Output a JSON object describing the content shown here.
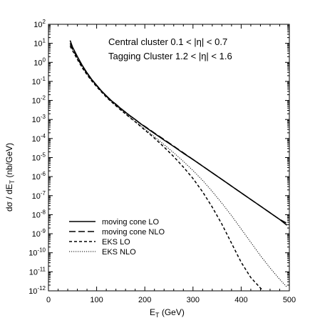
{
  "chart_data": {
    "type": "line",
    "title": "",
    "xlabel_main": "E",
    "xlabel_sub": "T",
    "xlabel_unit": " (GeV)",
    "ylabel_main": "dσ / dE",
    "ylabel_sub": "T",
    "ylabel_unit": " (nb/GeV)",
    "xlim": [
      0,
      500
    ],
    "ylim_log10": [
      -12,
      2
    ],
    "yscale": "log",
    "x_ticks": [
      "0",
      "100",
      "200",
      "300",
      "400",
      "500"
    ],
    "y_tick_exponents": [
      "2",
      "1",
      "0",
      "-1",
      "-2",
      "-3",
      "-4",
      "-5",
      "-6",
      "-7",
      "-8",
      "-9",
      "-10",
      "-11",
      "-12"
    ],
    "y_tick_base": "10",
    "annotations": [
      {
        "text": "Central cluster 0.1 < |η| < 0.7"
      },
      {
        "text": "Tagging Cluster 1.2 < |η| < 1.6"
      }
    ],
    "legend_position": "bottom-left",
    "series": [
      {
        "name": "moving cone LO",
        "style": "solid",
        "x": [
          45,
          50,
          60,
          70,
          80,
          90,
          100,
          110,
          120,
          130,
          140,
          150,
          160,
          170,
          180,
          190,
          200,
          220,
          240,
          260,
          280,
          300,
          320,
          340,
          360,
          380,
          400,
          420,
          440,
          460,
          480,
          495
        ],
        "log10_y": [
          1.15,
          0.8,
          0.3,
          -0.15,
          -0.55,
          -0.9,
          -1.2,
          -1.5,
          -1.75,
          -2.0,
          -2.2,
          -2.42,
          -2.62,
          -2.82,
          -3.0,
          -3.2,
          -3.38,
          -3.73,
          -4.08,
          -4.42,
          -4.77,
          -5.1,
          -5.45,
          -5.8,
          -6.15,
          -6.5,
          -6.85,
          -7.2,
          -7.55,
          -7.9,
          -8.25,
          -8.55
        ]
      },
      {
        "name": "moving cone NLO",
        "style": "dashed",
        "x": [
          45,
          50,
          60,
          70,
          80,
          90,
          100,
          110,
          120,
          130,
          140,
          150,
          160,
          170,
          180,
          190,
          200,
          220,
          240,
          260,
          280,
          300,
          320,
          340,
          360,
          380,
          400,
          420,
          440,
          460,
          480,
          495
        ],
        "log10_y": [
          1.0,
          0.72,
          0.24,
          -0.2,
          -0.58,
          -0.92,
          -1.22,
          -1.5,
          -1.76,
          -2.0,
          -2.2,
          -2.42,
          -2.62,
          -2.82,
          -3.0,
          -3.19,
          -3.36,
          -3.71,
          -4.05,
          -4.4,
          -4.75,
          -5.1,
          -5.45,
          -5.8,
          -6.15,
          -6.5,
          -6.85,
          -7.2,
          -7.55,
          -7.9,
          -8.25,
          -8.45
        ]
      },
      {
        "name": "EKS LO",
        "style": "short-dashed",
        "x": [
          45,
          50,
          60,
          70,
          80,
          90,
          100,
          110,
          120,
          130,
          140,
          150,
          160,
          170,
          180,
          190,
          200,
          220,
          240,
          260,
          280,
          300,
          320,
          340,
          360,
          380,
          400,
          420,
          440,
          446
        ],
        "log10_y": [
          0.85,
          0.62,
          0.15,
          -0.28,
          -0.65,
          -0.98,
          -1.28,
          -1.56,
          -1.82,
          -2.06,
          -2.28,
          -2.5,
          -2.71,
          -2.92,
          -3.12,
          -3.33,
          -3.55,
          -3.98,
          -4.45,
          -4.95,
          -5.5,
          -6.1,
          -6.8,
          -7.6,
          -8.5,
          -9.5,
          -10.5,
          -11.3,
          -11.85,
          -12.0
        ]
      },
      {
        "name": "EKS NLO",
        "style": "dotted",
        "x": [
          45,
          50,
          60,
          70,
          80,
          90,
          100,
          110,
          120,
          130,
          140,
          150,
          160,
          170,
          180,
          190,
          200,
          220,
          240,
          260,
          280,
          300,
          320,
          340,
          360,
          380,
          400,
          420,
          440,
          460,
          480,
          495
        ],
        "log10_y": [
          0.9,
          0.65,
          0.18,
          -0.25,
          -0.62,
          -0.96,
          -1.25,
          -1.54,
          -1.8,
          -2.05,
          -2.27,
          -2.48,
          -2.69,
          -2.9,
          -3.1,
          -3.3,
          -3.5,
          -3.9,
          -4.32,
          -4.75,
          -5.2,
          -5.68,
          -6.2,
          -6.78,
          -7.4,
          -8.05,
          -8.75,
          -9.45,
          -10.15,
          -10.8,
          -11.4,
          -11.8
        ]
      }
    ]
  }
}
